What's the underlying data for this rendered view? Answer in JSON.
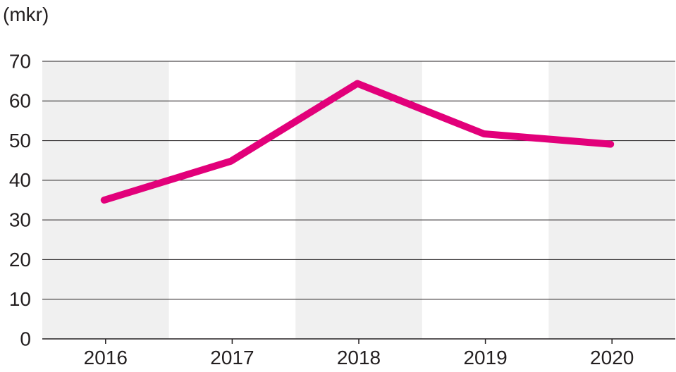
{
  "chart_data": {
    "type": "line",
    "ylabel": "(mkr)",
    "categories": [
      "2016",
      "2017",
      "2018",
      "2019",
      "2020"
    ],
    "series": [
      {
        "values": [
          35,
          44.8,
          64.4,
          51.7,
          49.1
        ]
      }
    ],
    "ylim": [
      0,
      70
    ],
    "yticks": [
      "0",
      "10",
      "20",
      "30",
      "40",
      "50",
      "60",
      "70"
    ],
    "grid": true,
    "legend": "none",
    "colors": {
      "line": "#e2007a",
      "band": "#f0f0f0",
      "grid": "#231f20",
      "text": "#231f20"
    }
  }
}
